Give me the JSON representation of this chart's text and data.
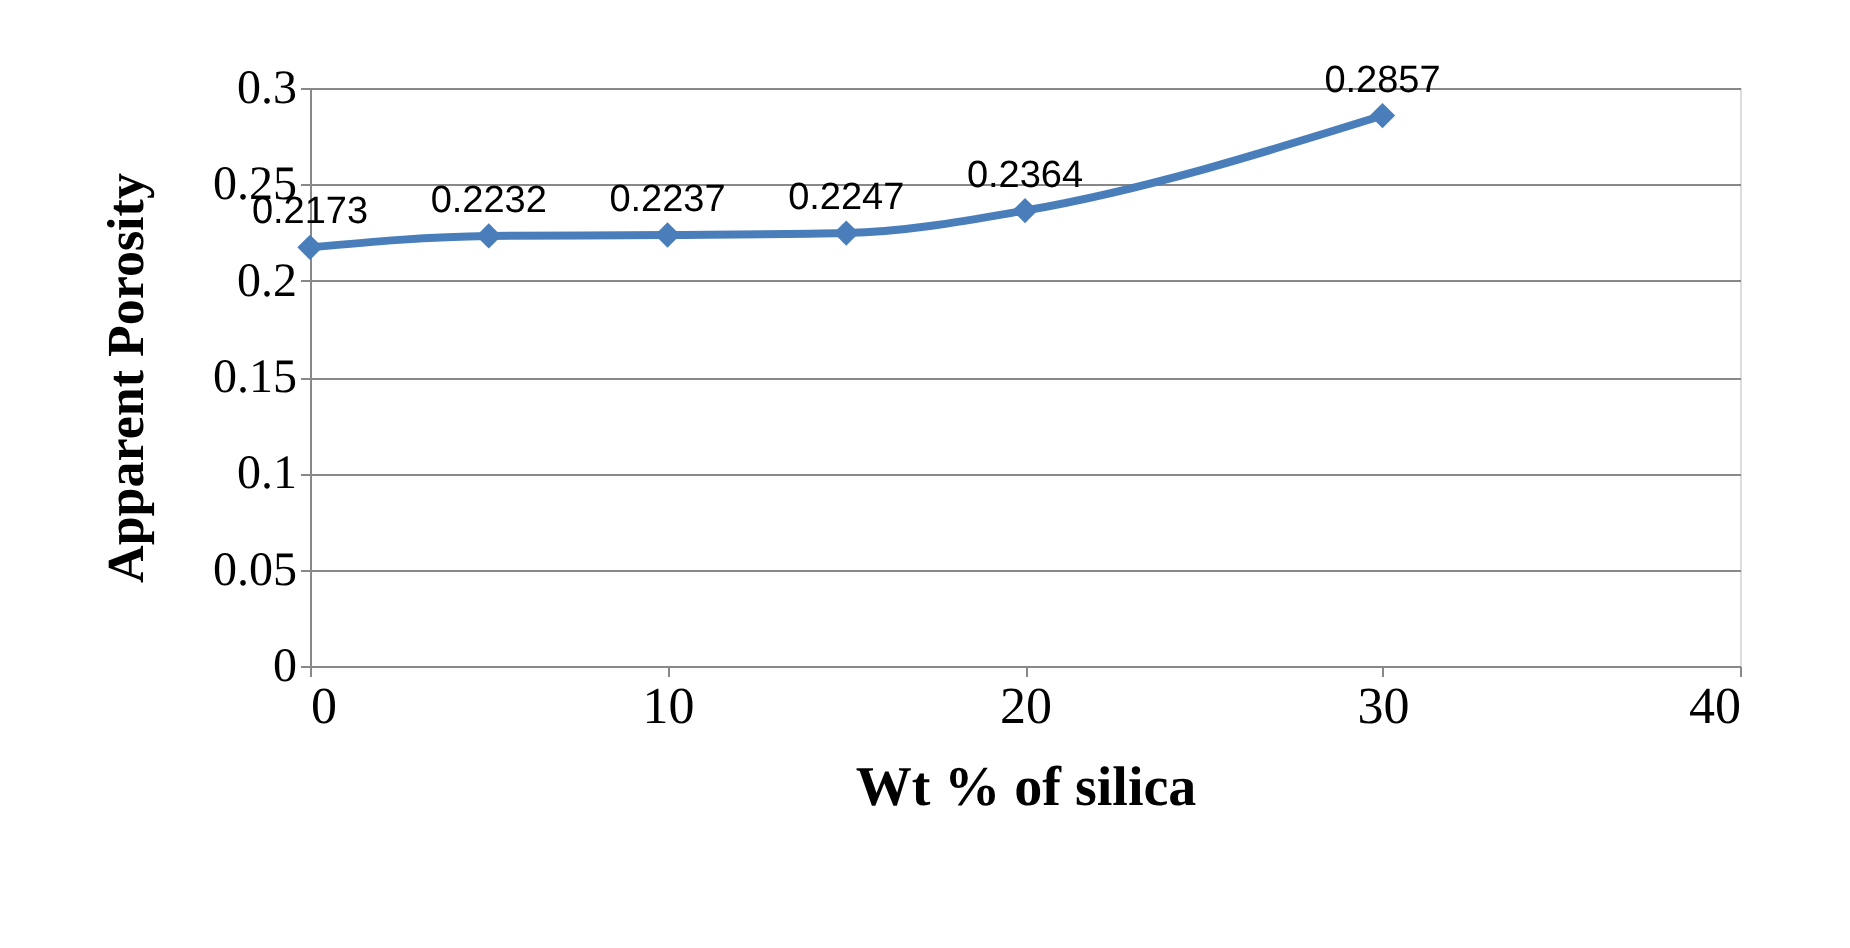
{
  "chart_data": {
    "type": "line",
    "xlabel": "Wt % of silica",
    "ylabel": "Apparent Porosity",
    "x": [
      0,
      5,
      10,
      15,
      20,
      30
    ],
    "series": [
      {
        "color": "#4a7ebb",
        "values": [
          0.2173,
          0.2232,
          0.2237,
          0.2247,
          0.2364,
          0.2857
        ]
      }
    ],
    "xlim": [
      0,
      40
    ],
    "xticks": [
      0,
      10,
      20,
      30,
      40
    ],
    "ylim": [
      0,
      0.3
    ],
    "yticks": [
      0,
      0.05,
      0.1,
      0.15,
      0.2,
      0.25,
      0.3
    ],
    "grid": "y",
    "marker": "diamond",
    "line_style": "solid",
    "data_labels": true
  }
}
